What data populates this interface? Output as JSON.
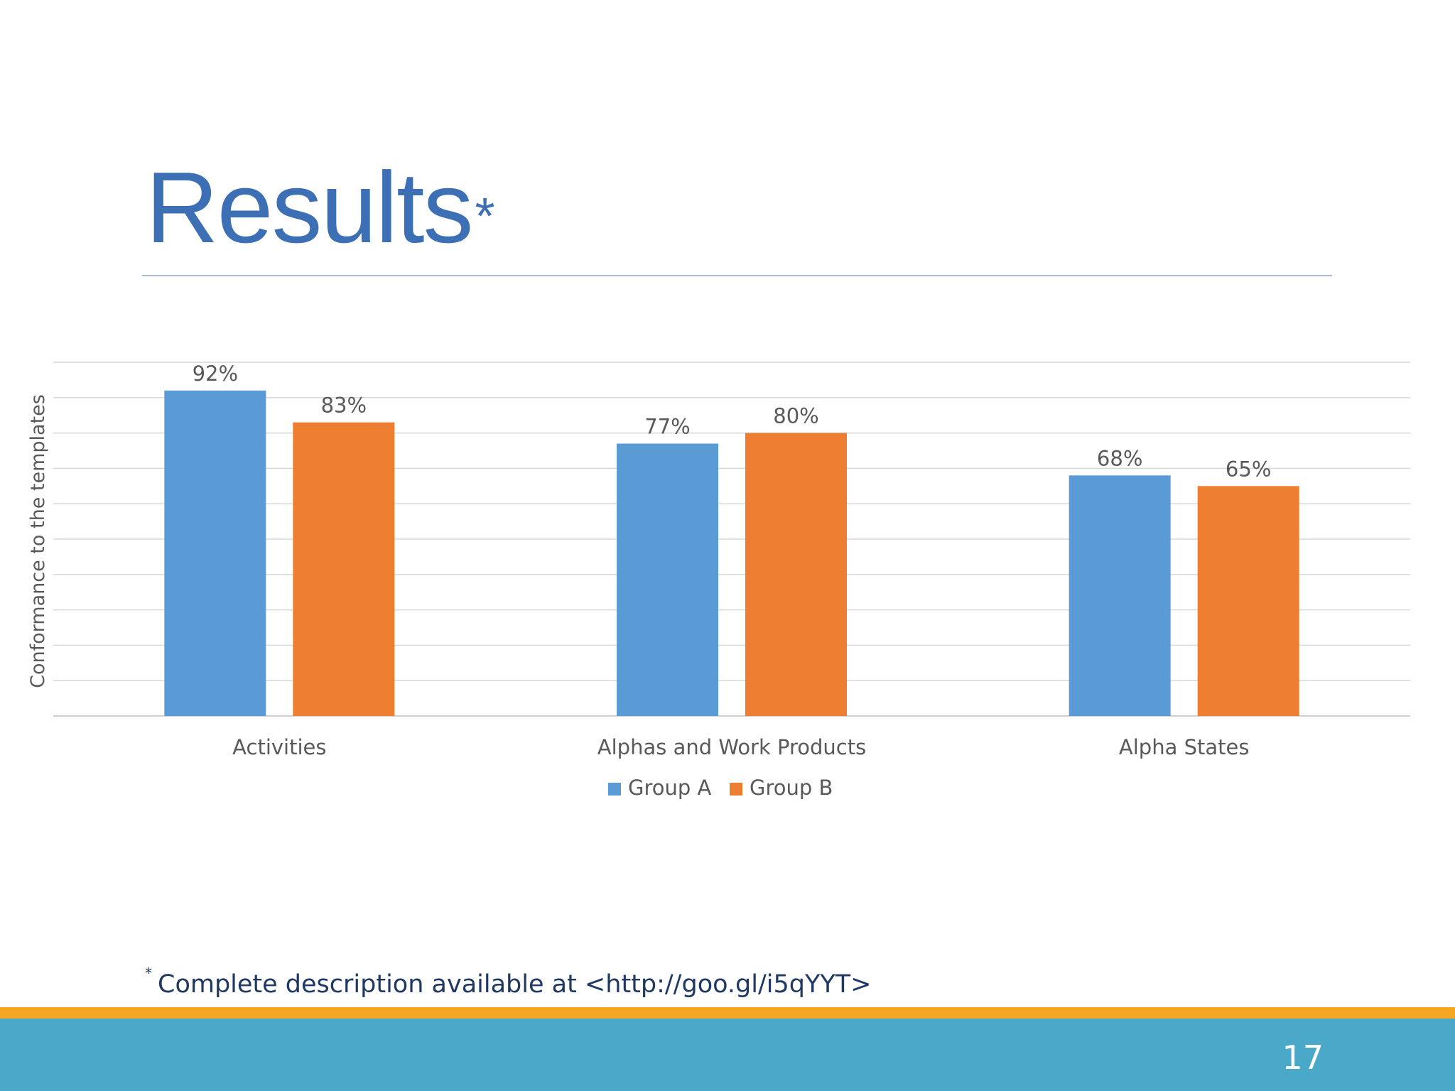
{
  "slide": {
    "title": "Results",
    "title_mark": "*",
    "footnote_mark": "*",
    "footnote": "Complete description available at <http://goo.gl/i5qYYT>",
    "page_number": "17"
  },
  "colors": {
    "title": "#3d6fb4",
    "group_a": "#5b9bd5",
    "group_b": "#ed7d31",
    "accent_bar": "#f5a623",
    "footer_band": "#4aa9c8",
    "gridline": "#d9d9d9",
    "axis_text": "#595959"
  },
  "chart_data": {
    "type": "bar",
    "categories": [
      "Activities",
      "Alphas and Work Products",
      "Alpha States"
    ],
    "series": [
      {
        "name": "Group A",
        "values": [
          92,
          77,
          68
        ],
        "labels": [
          "92%",
          "77%",
          "68%"
        ]
      },
      {
        "name": "Group B",
        "values": [
          83,
          80,
          65
        ],
        "labels": [
          "83%",
          "80%",
          "65%"
        ]
      }
    ],
    "ylabel": "Conformance to the templates",
    "ylim": [
      0,
      100
    ],
    "grid": true,
    "legend": "bottom"
  }
}
